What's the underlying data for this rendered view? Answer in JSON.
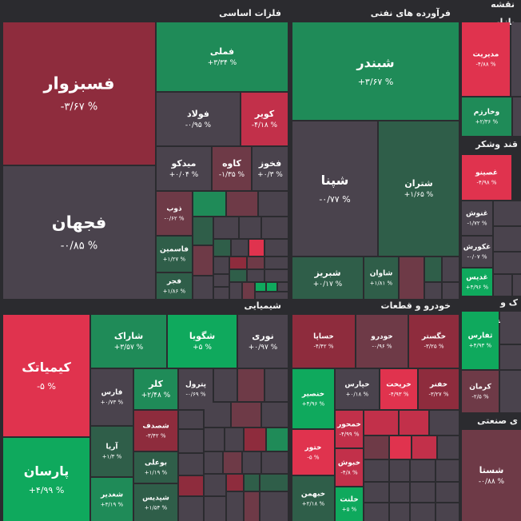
{
  "colors": {
    "neutral": "#4a434d",
    "red_dark": "#8e2c3d",
    "red": "#c2304a",
    "red_bright": "#e0334e",
    "red_muted": "#6e3a47",
    "green_dark": "#2f5e49",
    "green": "#1f8b58",
    "green_bright": "#0fa95d"
  },
  "sectors": [
    {
      "title": "فلزات اساسی"
    },
    {
      "title": "فرآورده های نفتی"
    },
    {
      "title": "نقشه بازار"
    },
    {
      "title": "قند وشکر"
    },
    {
      "title": "شیمیایی"
    },
    {
      "title": "خودرو و قطعات"
    },
    {
      "title": "ک و مستغلات"
    },
    {
      "title": "ی صنعتی"
    }
  ],
  "tiles": [
    {
      "name": "فسبزوار",
      "change": "-۳/۶۷ %",
      "color": "red_dark"
    },
    {
      "name": "فجهان",
      "change": "-۰/۸۵ %",
      "color": "neutral"
    },
    {
      "name": "فملی",
      "change": "+۳/۳۴ %",
      "color": "green"
    },
    {
      "name": "فولاد",
      "change": "-۰/۹۵ %",
      "color": "neutral"
    },
    {
      "name": "کویر",
      "change": "-۴/۱۸ %",
      "color": "red"
    },
    {
      "name": "میدکو",
      "change": "+۰/۰۴ %",
      "color": "neutral"
    },
    {
      "name": "کاوه",
      "change": "-۱/۳۵ %",
      "color": "red_muted"
    },
    {
      "name": "فخوز",
      "change": "+۰/۳ %",
      "color": "neutral"
    },
    {
      "name": "ذوب",
      "change": "-۰/۶۲ %",
      "color": "red_muted"
    },
    {
      "name": "فاسمین",
      "change": "+۱/۲۷ %",
      "color": "green_dark"
    },
    {
      "name": "فجر",
      "change": "+۱/۸۶ %",
      "color": "green_dark"
    },
    {
      "name": "شبندر",
      "change": "+۳/۶۷ %",
      "color": "green"
    },
    {
      "name": "شپنا",
      "change": "-۰/۷۷ %",
      "color": "neutral"
    },
    {
      "name": "شتران",
      "change": "+۱/۶۵ %",
      "color": "green_dark"
    },
    {
      "name": "شبریز",
      "change": "+۰/۱۷ %",
      "color": "green_dark"
    },
    {
      "name": "شاوان",
      "change": "+۱/۸۱ %",
      "color": "green_dark"
    },
    {
      "name": "مدیریت",
      "change": "-۴/۸۸ %",
      "color": "red_bright"
    },
    {
      "name": "وخارزم",
      "change": "+۲/۳۶ %",
      "color": "green"
    },
    {
      "name": "غصینو",
      "change": "-۴/۹۸ %",
      "color": "red_bright"
    },
    {
      "name": "غنوش",
      "change": "-۱/۷۲ %",
      "color": "neutral"
    },
    {
      "name": "غکورش",
      "change": "-۰/۰۷ %",
      "color": "neutral"
    },
    {
      "name": "غدیس",
      "change": "+۴/۹۶ %",
      "color": "green_bright"
    },
    {
      "name": "کیمیاتک",
      "change": "-۵ %",
      "color": "red_bright"
    },
    {
      "name": "پارسان",
      "change": "+۴/۹۹ %",
      "color": "green_bright"
    },
    {
      "name": "شاراک",
      "change": "+۳/۵۷ %",
      "color": "green"
    },
    {
      "name": "شگویا",
      "change": "+۵ %",
      "color": "green_bright"
    },
    {
      "name": "نوری",
      "change": "+۰/۹۷ %",
      "color": "neutral"
    },
    {
      "name": "فارس",
      "change": "+۰/۷۳ %",
      "color": "neutral"
    },
    {
      "name": "کلر",
      "change": "+۲/۴۸ %",
      "color": "green"
    },
    {
      "name": "پترول",
      "change": "-۰/۶۹ %",
      "color": "neutral"
    },
    {
      "name": "شصدف",
      "change": "-۳/۴۲ %",
      "color": "red_dark"
    },
    {
      "name": "آریا",
      "change": "+۱/۳ %",
      "color": "green_dark"
    },
    {
      "name": "بوعلی",
      "change": "+۱/۱۹ %",
      "color": "green_dark"
    },
    {
      "name": "شغدیر",
      "change": "+۳/۱۹ %",
      "color": "green"
    },
    {
      "name": "شپدیس",
      "change": "+۱/۵۴ %",
      "color": "green_dark"
    },
    {
      "name": "خساپا",
      "change": "-۴/۴۲ %",
      "color": "red_dark"
    },
    {
      "name": "خودرو",
      "change": "-۰/۹۶ %",
      "color": "red_muted"
    },
    {
      "name": "خگستر",
      "change": "-۳/۲۵ %",
      "color": "red_dark"
    },
    {
      "name": "خنصیر",
      "change": "+۴/۹۶ %",
      "color": "green_bright"
    },
    {
      "name": "خپارس",
      "change": "+۰/۱۸ %",
      "color": "neutral"
    },
    {
      "name": "خریخت",
      "change": "-۴/۹۳ %",
      "color": "red_bright"
    },
    {
      "name": "خفنر",
      "change": "-۳/۲۷ %",
      "color": "red_dark"
    },
    {
      "name": "خمحور",
      "change": "-۴/۹۹ %",
      "color": "red"
    },
    {
      "name": "ختور",
      "change": "-۵ %",
      "color": "red_bright"
    },
    {
      "name": "خبهمن",
      "change": "+۲/۱۸ %",
      "color": "green_dark"
    },
    {
      "name": "خبوش",
      "change": "-۴/۸ %",
      "color": "red"
    },
    {
      "name": "خلنت",
      "change": "+۵ %",
      "color": "green_bright"
    },
    {
      "name": "ثفارس",
      "change": "+۴/۹۳ %",
      "color": "green_bright"
    },
    {
      "name": "کرمان",
      "change": "-۲/۵ %",
      "color": "red_muted"
    },
    {
      "name": "شستا",
      "change": "-۰/۸۸ %",
      "color": "red_muted"
    }
  ]
}
